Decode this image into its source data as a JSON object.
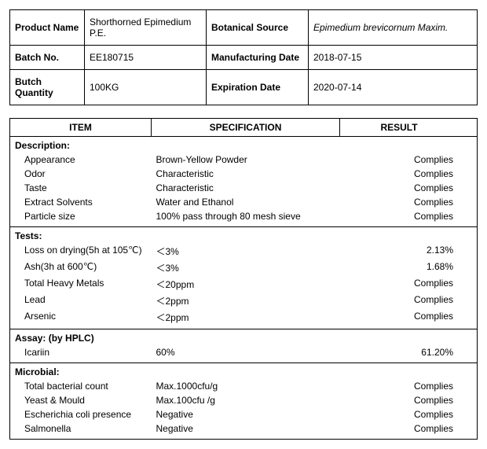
{
  "header": {
    "rows": [
      {
        "label1": "Product Name",
        "value1": "Shorthorned   Epimedium P.E.",
        "label2": "Botanical Source",
        "value2": "Epimedium brevicornum Maxim.",
        "value2_italic": true
      },
      {
        "label1": "Batch No.",
        "value1": "EE180715",
        "label2": "Manufacturing Date",
        "value2": "2018-07-15",
        "value2_italic": false
      },
      {
        "label1": "Butch Quantity",
        "value1": "100KG",
        "label2": "Expiration Date",
        "value2": "2020-07-14",
        "value2_italic": false
      }
    ]
  },
  "spec_table": {
    "columns": [
      "ITEM",
      "SPECIFICATION",
      "RESULT"
    ],
    "sections": [
      {
        "title": "Description:",
        "rows": [
          {
            "item": "Appearance",
            "spec": "Brown-Yellow Powder",
            "result": "Complies"
          },
          {
            "item": "Odor",
            "spec": "Characteristic",
            "result": "Complies"
          },
          {
            "item": "Taste",
            "spec": "Characteristic",
            "result": "Complies"
          },
          {
            "item": "Extract Solvents",
            "spec": "Water and Ethanol",
            "result": "Complies"
          },
          {
            "item": "Particle size",
            "spec": "100% pass through 80 mesh sieve",
            "result": "Complies"
          }
        ]
      },
      {
        "title": "Tests:",
        "rows": [
          {
            "item": "Loss on drying(5h at 105℃)",
            "spec": "＜3%",
            "result": "2.13%"
          },
          {
            "item": "Ash(3h at 600℃)",
            "spec": "＜3%",
            "result": "1.68%"
          },
          {
            "item": "Total Heavy Metals",
            "spec": "＜20ppm",
            "result": "Complies"
          },
          {
            "item": "Lead",
            "spec": "＜2ppm",
            "result": "Complies"
          },
          {
            "item": "Arsenic",
            "spec": "＜2ppm",
            "result": "Complies"
          }
        ]
      },
      {
        "title": "Assay: (by HPLC)",
        "rows": [
          {
            "item": "Icariin",
            "spec": "60%",
            "result": "61.20%"
          }
        ]
      },
      {
        "title": "Microbial:",
        "rows": [
          {
            "item": "Total bacterial count",
            "spec": "Max.1000cfu/g",
            "result": "Complies"
          },
          {
            "item": "Yeast & Mould",
            "spec": "Max.100cfu /g",
            "result": "Complies"
          },
          {
            "item": "Escherichia coli presence",
            "spec": "Negative",
            "result": "Complies"
          },
          {
            "item": "Salmonella",
            "spec": "Negative",
            "result": "Complies"
          }
        ]
      }
    ]
  }
}
